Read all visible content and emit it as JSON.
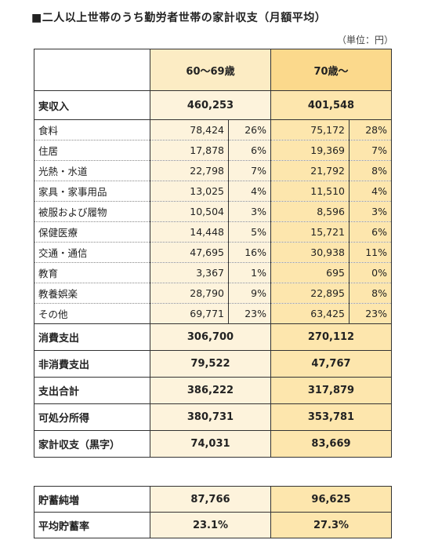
{
  "title": "■二人以上世帯のうち勤労者世帯の家計収支（月額平均）",
  "unit": "（単位：円）",
  "headers": {
    "col_a": "60～69歳",
    "col_b": "70歳～"
  },
  "income": {
    "label": "実収入",
    "a": "460,253",
    "b": "401,548"
  },
  "expenses": [
    {
      "label": "食料",
      "a": "78,424",
      "a_pct": "26%",
      "b": "75,172",
      "b_pct": "28%"
    },
    {
      "label": "住居",
      "a": "17,878",
      "a_pct": "6%",
      "b": "19,369",
      "b_pct": "7%"
    },
    {
      "label": "光熱・水道",
      "a": "22,798",
      "a_pct": "7%",
      "b": "21,792",
      "b_pct": "8%"
    },
    {
      "label": "家具・家事用品",
      "a": "13,025",
      "a_pct": "4%",
      "b": "11,510",
      "b_pct": "4%"
    },
    {
      "label": "被服および履物",
      "a": "10,504",
      "a_pct": "3%",
      "b": "8,596",
      "b_pct": "3%"
    },
    {
      "label": "保健医療",
      "a": "14,448",
      "a_pct": "5%",
      "b": "15,721",
      "b_pct": "6%"
    },
    {
      "label": "交通・通信",
      "a": "47,695",
      "a_pct": "16%",
      "b": "30,938",
      "b_pct": "11%"
    },
    {
      "label": "教育",
      "a": "3,367",
      "a_pct": "1%",
      "b": "695",
      "b_pct": "0%"
    },
    {
      "label": "教養娯楽",
      "a": "28,790",
      "a_pct": "9%",
      "b": "22,895",
      "b_pct": "8%"
    },
    {
      "label": "その他",
      "a": "69,771",
      "a_pct": "23%",
      "b": "63,425",
      "b_pct": "23%"
    }
  ],
  "totals": [
    {
      "label": "消費支出",
      "a": "306,700",
      "b": "270,112"
    },
    {
      "label": "非消費支出",
      "a": "79,522",
      "b": "47,767"
    },
    {
      "label": "支出合計",
      "a": "386,222",
      "b": "317,879"
    },
    {
      "label": "可処分所得",
      "a": "380,731",
      "b": "353,781"
    },
    {
      "label": "家計収支（黒字）",
      "a": "74,031",
      "b": "83,669"
    }
  ],
  "savings": [
    {
      "label": "貯蓄純増",
      "a": "87,766",
      "b": "96,625"
    },
    {
      "label": "平均貯蓄率",
      "a": "23.1%",
      "b": "27.3%"
    }
  ]
}
